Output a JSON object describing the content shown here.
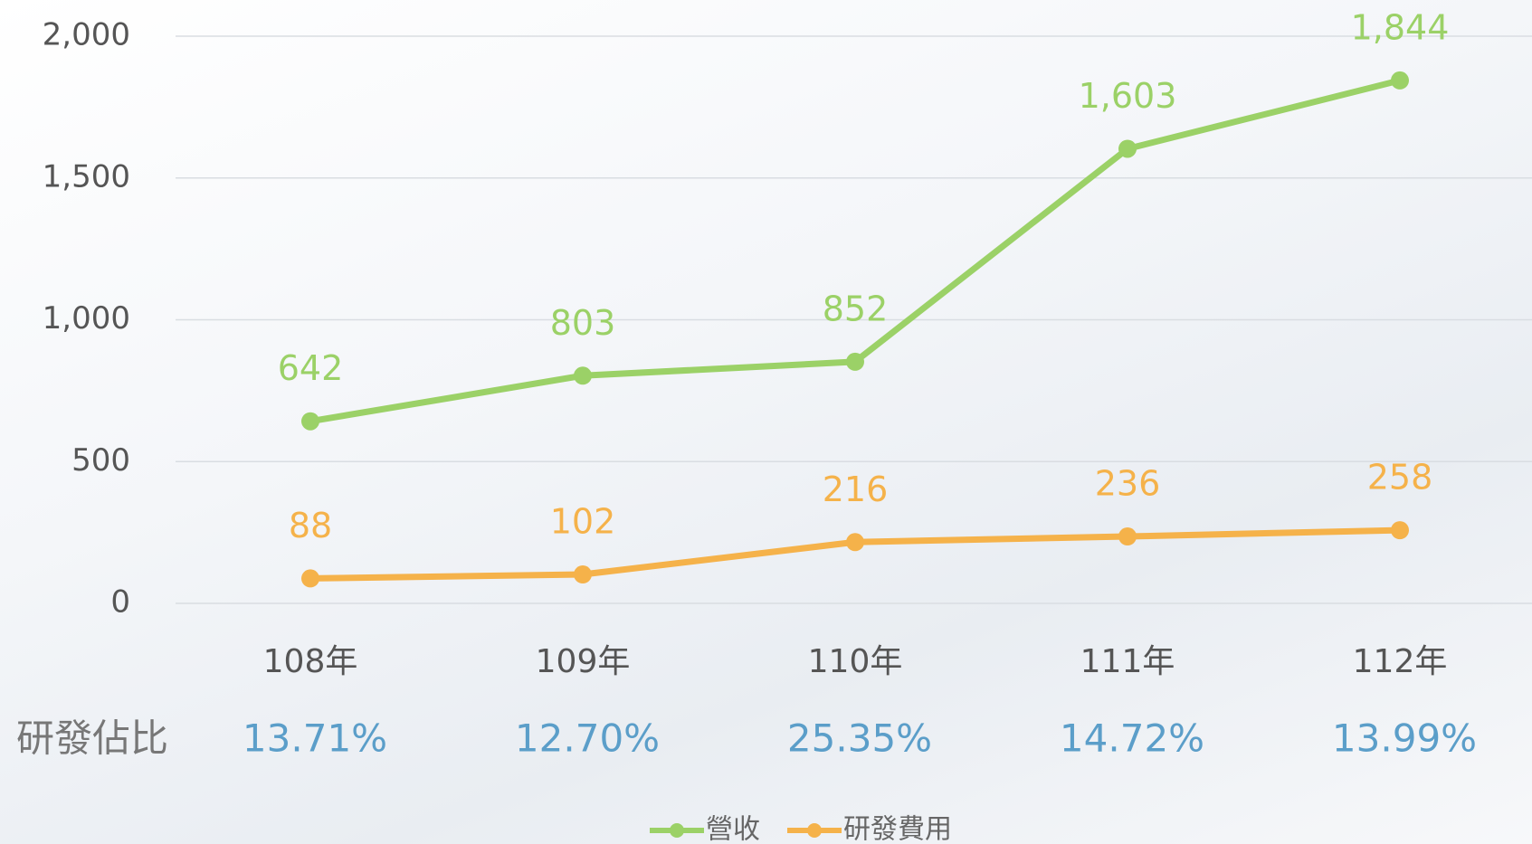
{
  "chart_data": {
    "type": "line",
    "categories": [
      "108年",
      "109年",
      "110年",
      "111年",
      "112年"
    ],
    "series": [
      {
        "name": "營收",
        "color": "#9bd167",
        "values": [
          642,
          803,
          852,
          1603,
          1844
        ],
        "value_labels": [
          "642",
          "803",
          "852",
          "1,603",
          "1,844"
        ]
      },
      {
        "name": "研發費用",
        "color": "#f5b24a",
        "values": [
          88,
          102,
          216,
          236,
          258
        ]
      }
    ],
    "ylim": [
      0,
      2000
    ],
    "yticks": [
      0,
      500,
      {
        "value": 1000,
        "label": "1,000"
      },
      {
        "value": 1500,
        "label": "1,500"
      },
      {
        "value": 2000,
        "label": "2,000"
      }
    ],
    "grid": true,
    "legend": "bottom",
    "ratio_row": {
      "label": "研發佔比",
      "values": [
        "13.71%",
        "12.70%",
        "25.35%",
        "14.72%",
        "13.99%"
      ],
      "color": "#5b9ec9"
    }
  }
}
